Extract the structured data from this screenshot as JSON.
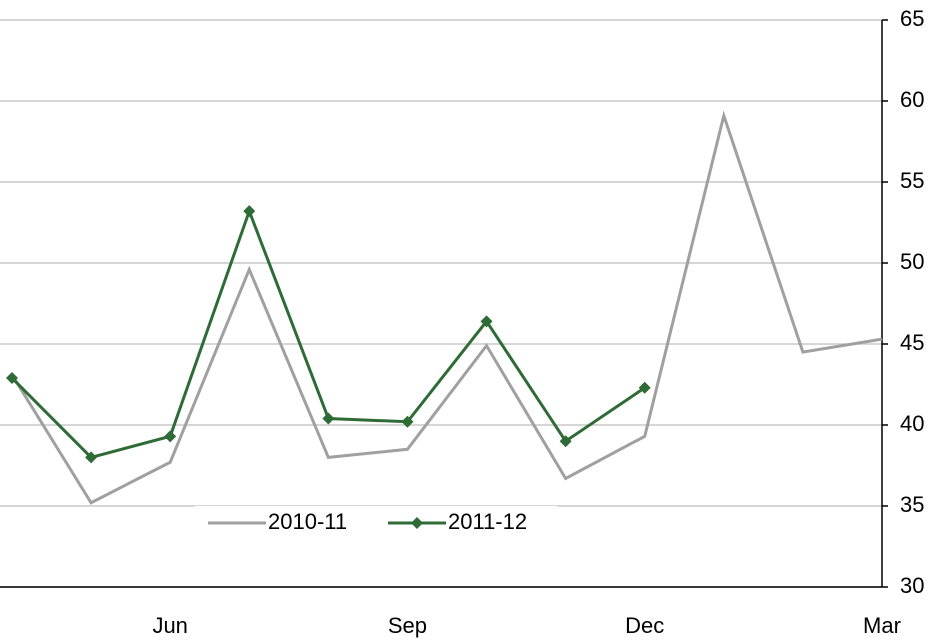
{
  "chart_data": {
    "type": "line",
    "categories": [
      null,
      null,
      "Jun",
      null,
      null,
      "Sep",
      null,
      null,
      "Dec",
      null,
      null,
      "Mar"
    ],
    "series": [
      {
        "name": "2010-11",
        "color": "#a0a0a0",
        "values": [
          43.1,
          35.2,
          37.7,
          49.6,
          38.0,
          38.5,
          44.9,
          36.7,
          39.3,
          59.1,
          44.5,
          45.3
        ]
      },
      {
        "name": "2011-12",
        "color": "#2e6b36",
        "marker": "diamond",
        "values": [
          42.9,
          38.0,
          39.3,
          53.2,
          40.4,
          40.2,
          46.4,
          39.0,
          42.3,
          null,
          null,
          null
        ]
      }
    ],
    "ylim": [
      30,
      65
    ],
    "yticks": [
      30,
      35,
      40,
      45,
      50,
      55,
      60,
      65
    ],
    "y_axis_side": "right",
    "grid": true,
    "legend": "bottom"
  }
}
